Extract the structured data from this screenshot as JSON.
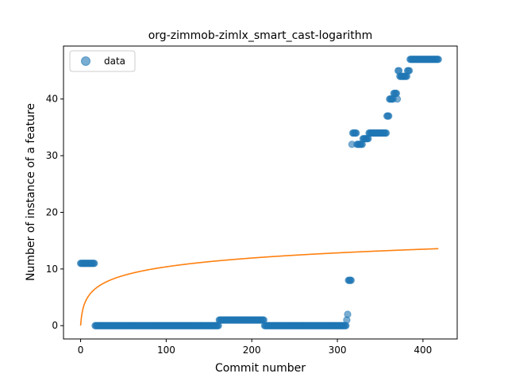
{
  "chart_data": {
    "type": "scatter",
    "title": "org-zimmob-zimlx_smart_cast-logarithm",
    "xlabel": "Commit number",
    "ylabel": "Number of instance of a feature",
    "xlim": [
      -20,
      440
    ],
    "ylim": [
      -2.35,
      49.35
    ],
    "xticks": [
      0,
      100,
      200,
      300,
      400
    ],
    "yticks": [
      0,
      10,
      20,
      30,
      40
    ],
    "legend": {
      "position": "top-left",
      "entries": [
        "data"
      ]
    },
    "colors": {
      "data": "#1f77b4",
      "fit": "#ff7f0e"
    },
    "series": [
      {
        "name": "data",
        "kind": "scatter",
        "segments": [
          {
            "x_start": 0,
            "x_end": 16,
            "y": 11
          },
          {
            "x_start": 17,
            "x_end": 161,
            "y": 0
          },
          {
            "x_start": 162,
            "x_end": 214,
            "y": 1
          },
          {
            "x_start": 215,
            "x_end": 310,
            "y": 0
          },
          {
            "x_start": 311,
            "x_end": 311,
            "y": 1
          },
          {
            "x_start": 312,
            "x_end": 312,
            "y": 2
          },
          {
            "x_start": 313,
            "x_end": 316,
            "y": 8
          },
          {
            "x_start": 317,
            "x_end": 317,
            "y": 32
          },
          {
            "x_start": 318,
            "x_end": 322,
            "y": 34
          },
          {
            "x_start": 323,
            "x_end": 329,
            "y": 32
          },
          {
            "x_start": 330,
            "x_end": 331,
            "y": 33
          },
          {
            "x_start": 332,
            "x_end": 336,
            "y": 33
          },
          {
            "x_start": 337,
            "x_end": 357,
            "y": 34
          },
          {
            "x_start": 358,
            "x_end": 360,
            "y": 37
          },
          {
            "x_start": 361,
            "x_end": 365,
            "y": 40
          },
          {
            "x_start": 366,
            "x_end": 369,
            "y": 41
          },
          {
            "x_start": 370,
            "x_end": 370,
            "y": 40
          },
          {
            "x_start": 371,
            "x_end": 372,
            "y": 45
          },
          {
            "x_start": 373,
            "x_end": 381,
            "y": 44
          },
          {
            "x_start": 382,
            "x_end": 384,
            "y": 45
          },
          {
            "x_start": 385,
            "x_end": 418,
            "y": 47
          }
        ]
      },
      {
        "name": "fit",
        "kind": "line",
        "formula": "a*ln(x+1)",
        "a": 2.25,
        "x_range": [
          0,
          418
        ]
      }
    ]
  }
}
